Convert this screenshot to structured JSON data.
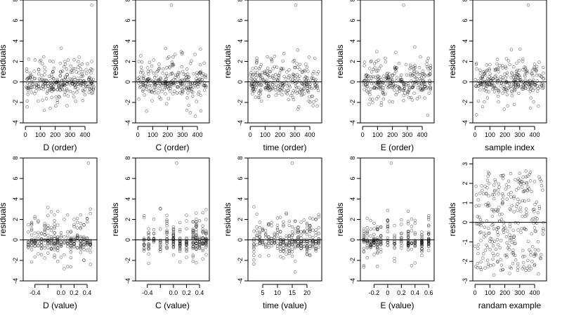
{
  "figure": {
    "layout": {
      "rows": 2,
      "cols": 5
    }
  },
  "chart_data": [
    {
      "id": "p1",
      "type": "scatter",
      "xlabel": "D (order)",
      "ylabel": "residuals",
      "xlim": [
        -15,
        480
      ],
      "ylim": [
        -4,
        8
      ],
      "xticks": [
        0,
        100,
        200,
        300,
        400
      ],
      "yticks": [
        -4,
        -2,
        0,
        2,
        4,
        6,
        8
      ],
      "zero_line": true,
      "pattern": "index",
      "n": 280,
      "seed": 11,
      "outlier": [
        445,
        7.5
      ]
    },
    {
      "id": "p2",
      "type": "scatter",
      "xlabel": "C (order)",
      "ylabel": "residuals",
      "xlim": [
        -15,
        480
      ],
      "ylim": [
        -4,
        8
      ],
      "xticks": [
        0,
        100,
        200,
        300,
        400
      ],
      "yticks": [
        -4,
        -2,
        0,
        2,
        4,
        6,
        8
      ],
      "zero_line": true,
      "pattern": "index",
      "n": 280,
      "seed": 23,
      "outlier": [
        225,
        7.5
      ]
    },
    {
      "id": "p3",
      "type": "scatter",
      "xlabel": "time (order)",
      "ylabel": "residuals",
      "xlim": [
        -15,
        480
      ],
      "ylim": [
        -4,
        8
      ],
      "xticks": [
        0,
        100,
        200,
        300,
        400
      ],
      "yticks": [
        -4,
        -2,
        0,
        2,
        4,
        6,
        8
      ],
      "zero_line": true,
      "pattern": "index",
      "n": 280,
      "seed": 37,
      "outlier": [
        305,
        7.5
      ]
    },
    {
      "id": "p4",
      "type": "scatter",
      "xlabel": "E (order)",
      "ylabel": "residuals",
      "xlim": [
        -15,
        480
      ],
      "ylim": [
        -4,
        8
      ],
      "xticks": [
        0,
        100,
        200,
        300,
        400
      ],
      "yticks": [
        -4,
        -2,
        0,
        2,
        4,
        6,
        8
      ],
      "zero_line": true,
      "pattern": "index",
      "n": 280,
      "seed": 41,
      "outlier": [
        275,
        7.5
      ]
    },
    {
      "id": "p5",
      "type": "scatter",
      "xlabel": "sample index",
      "ylabel": "residuals",
      "xlim": [
        -15,
        480
      ],
      "ylim": [
        -4,
        8
      ],
      "xticks": [
        0,
        100,
        200,
        300,
        400
      ],
      "yticks": [
        -4,
        -2,
        0,
        2,
        4,
        6,
        8
      ],
      "zero_line": true,
      "pattern": "index",
      "n": 280,
      "seed": 53,
      "outlier": [
        358,
        7.5
      ]
    },
    {
      "id": "p6",
      "type": "scatter",
      "xlabel": "D (value)",
      "ylabel": "residuals",
      "xlim": [
        -0.58,
        0.55
      ],
      "ylim": [
        -4,
        8
      ],
      "xticks": [
        -0.4,
        -0.2,
        0.0,
        0.2,
        0.4
      ],
      "xtick_labels": [
        "-0.4",
        "",
        "0.0",
        "0.2",
        "0.4"
      ],
      "yticks": [
        -4,
        -2,
        0,
        2,
        4,
        6,
        8
      ],
      "zero_line": true,
      "pattern": "columns",
      "xvalues": [
        -0.5,
        -0.45,
        -0.4,
        -0.35,
        -0.3,
        -0.25,
        -0.2,
        -0.15,
        -0.1,
        -0.05,
        0.0,
        0.05,
        0.1,
        0.15,
        0.2,
        0.25,
        0.3,
        0.35,
        0.4,
        0.45
      ],
      "n": 280,
      "seed": 61,
      "outlier": [
        0.42,
        7.5
      ]
    },
    {
      "id": "p7",
      "type": "scatter",
      "xlabel": "C (value)",
      "ylabel": "residuals",
      "xlim": [
        -0.58,
        0.55
      ],
      "ylim": [
        -4,
        8
      ],
      "xticks": [
        -0.4,
        -0.2,
        0.0,
        0.2,
        0.4
      ],
      "xtick_labels": [
        "-0.4",
        "",
        "0.0",
        "0.2",
        "0.4"
      ],
      "yticks": [
        -4,
        -2,
        0,
        2,
        4,
        6,
        8
      ],
      "zero_line": true,
      "pattern": "columns",
      "xvalues": [
        -0.45,
        -0.38,
        -0.3,
        -0.2,
        -0.1,
        0.0,
        0.1,
        0.2,
        0.3,
        0.35,
        0.4,
        0.45,
        0.5
      ],
      "n": 260,
      "seed": 71,
      "outlier": [
        0.05,
        7.5
      ]
    },
    {
      "id": "p8",
      "type": "scatter",
      "xlabel": "time (value)",
      "ylabel": "residuals",
      "xlim": [
        0,
        25
      ],
      "ylim": [
        -4,
        8
      ],
      "xticks": [
        5,
        10,
        15,
        20
      ],
      "yticks": [
        -4,
        -2,
        0,
        2,
        4,
        6,
        8
      ],
      "zero_line": true,
      "pattern": "columns",
      "xvalues": [
        2,
        3,
        4,
        5,
        6,
        7,
        8,
        9,
        10,
        11,
        12,
        13,
        14,
        15,
        16,
        17,
        18,
        19,
        20,
        21,
        22,
        23,
        24
      ],
      "n": 280,
      "seed": 83,
      "outlier": [
        15,
        7.5
      ]
    },
    {
      "id": "p9",
      "type": "scatter",
      "xlabel": "E (value)",
      "ylabel": "residuals",
      "xlim": [
        -0.4,
        0.68
      ],
      "ylim": [
        -4,
        8
      ],
      "xticks": [
        -0.2,
        0.0,
        0.2,
        0.4,
        0.6
      ],
      "yticks": [
        -4,
        -2,
        0,
        2,
        4,
        6,
        8
      ],
      "zero_line": true,
      "pattern": "columns",
      "xvalues": [
        -0.35,
        -0.3,
        -0.25,
        -0.2,
        -0.15,
        -0.1,
        0.0,
        0.1,
        0.2,
        0.3,
        0.35,
        0.4,
        0.5,
        0.6
      ],
      "n": 260,
      "seed": 97,
      "outlier": [
        0.05,
        7.5
      ]
    },
    {
      "id": "p10",
      "type": "scatter",
      "xlabel": "randam example",
      "ylabel": "residuals",
      "xlim": [
        -15,
        480
      ],
      "ylim": [
        -3,
        3.3
      ],
      "xticks": [
        0,
        100,
        200,
        300,
        400
      ],
      "yticks": [
        -3,
        -2,
        -1,
        0,
        1,
        2,
        3
      ],
      "zero_line": true,
      "pattern": "uniform",
      "n": 300,
      "seed": 101,
      "outlier": null
    }
  ]
}
